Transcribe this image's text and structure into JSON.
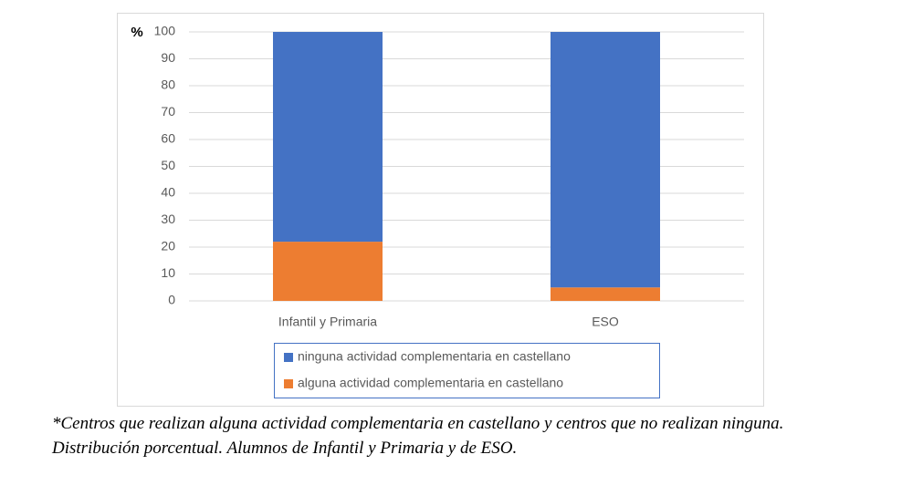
{
  "chart_data": {
    "type": "stacked_bar",
    "y_label": "%",
    "categories": [
      "Infantil y Primaria",
      "ESO"
    ],
    "series": [
      {
        "name": "ninguna actividad complementaria en castellano",
        "color": "#4472c4",
        "values": [
          78,
          95
        ]
      },
      {
        "name": "alguna actividad complementaria en castellano",
        "color": "#ed7d31",
        "values": [
          22,
          5
        ]
      }
    ],
    "ylim": [
      0,
      100
    ],
    "yticks": [
      0,
      10,
      20,
      30,
      40,
      50,
      60,
      70,
      80,
      90,
      100
    ],
    "grid": true,
    "caption": "*Centros que realizan alguna actividad complementaria en castellano y centros que no realizan ninguna. Distribución porcentual. Alumnos de Infantil y Primaria y de ESO."
  }
}
